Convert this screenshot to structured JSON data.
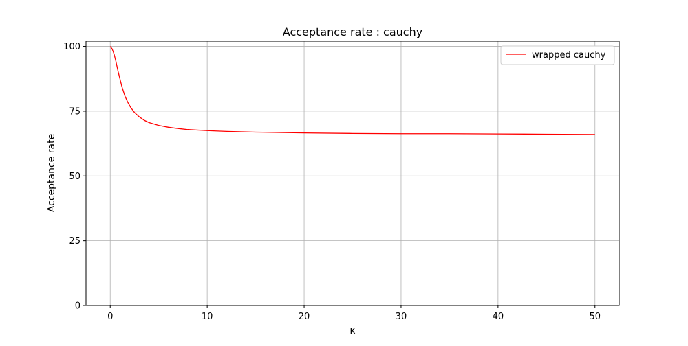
{
  "chart_data": {
    "type": "line",
    "title": "Acceptance rate : cauchy",
    "xlabel": "κ",
    "ylabel": "Acceptance rate",
    "xlim": [
      -2.5,
      52.5
    ],
    "ylim": [
      0,
      102
    ],
    "xticks": [
      0,
      10,
      20,
      30,
      40,
      50
    ],
    "xtick_labels": [
      "0",
      "10",
      "20",
      "30",
      "40",
      "50"
    ],
    "yticks": [
      0,
      25,
      50,
      75,
      100
    ],
    "ytick_labels": [
      "0",
      "25",
      "50",
      "75",
      "100"
    ],
    "grid": true,
    "legend_position": "upper right",
    "series": [
      {
        "name": "wrapped cauchy",
        "color": "#ff0000",
        "x": [
          0,
          0.2,
          0.4,
          0.6,
          0.8,
          1.0,
          1.2,
          1.5,
          1.8,
          2.1,
          2.5,
          3.0,
          3.5,
          4.0,
          5.0,
          6.0,
          7.0,
          8.0,
          10.0,
          12.0,
          15.0,
          20.0,
          25.0,
          30.0,
          35.0,
          40.0,
          45.0,
          50.0
        ],
        "values": [
          100.0,
          99.0,
          97.0,
          94.0,
          90.5,
          87.5,
          84.5,
          81.0,
          78.5,
          76.5,
          74.5,
          72.8,
          71.5,
          70.6,
          69.5,
          68.8,
          68.3,
          67.9,
          67.5,
          67.2,
          66.9,
          66.6,
          66.4,
          66.3,
          66.3,
          66.2,
          66.1,
          66.0
        ]
      }
    ]
  }
}
